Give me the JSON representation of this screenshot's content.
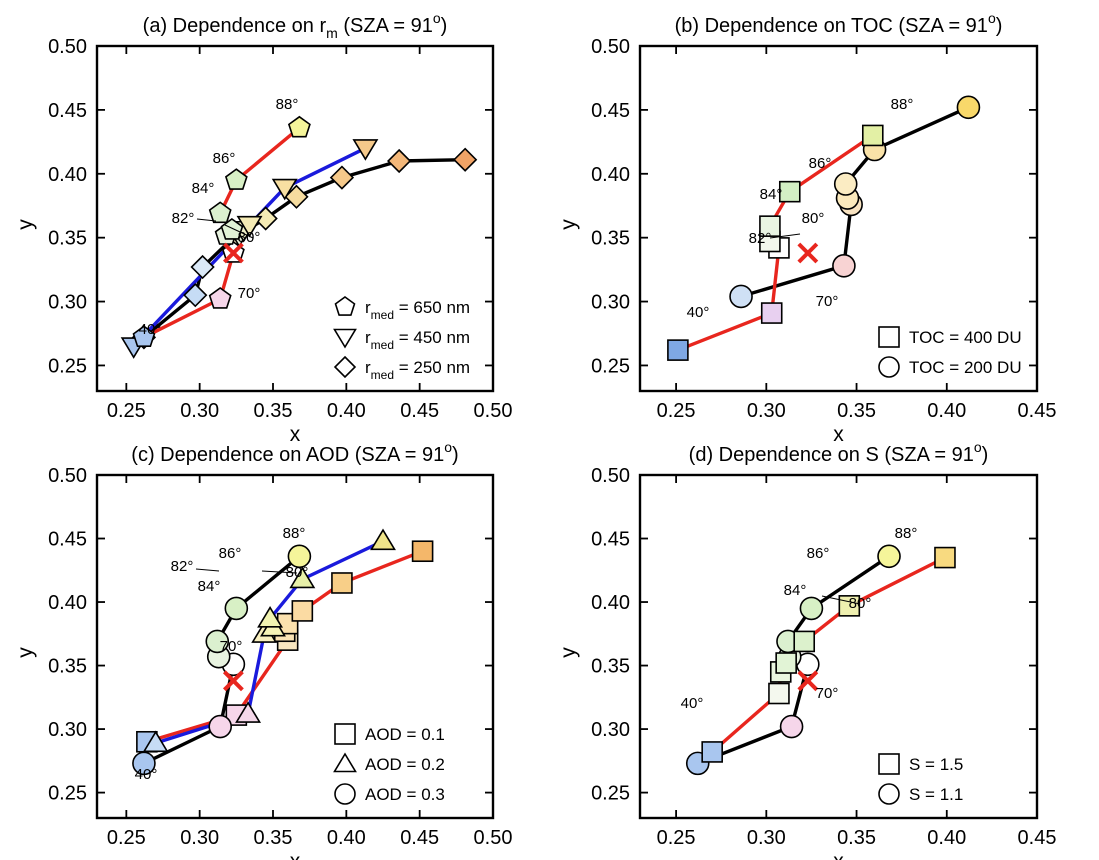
{
  "chart_data": [
    {
      "type": "scatter",
      "title": "(a) Dependence on r",
      "title_sub": "m",
      "title_rest": " (SZA = 91",
      "title_sup": "o",
      "title_end": ")",
      "xlabel": "x",
      "ylabel": "y",
      "xlim": [
        0.23,
        0.5
      ],
      "ylim": [
        0.23,
        0.5
      ],
      "xticks": [
        "0.25",
        "0.30",
        "0.35",
        "0.40",
        "0.45",
        "0.50"
      ],
      "yticks": [
        "0.25",
        "0.30",
        "0.35",
        "0.40",
        "0.45",
        "0.50"
      ],
      "grid": false,
      "marker": {
        "x": 0.323,
        "y": 0.338,
        "color": "#e8261e"
      },
      "series": [
        {
          "line_color": "#000000",
          "marker": "diamond",
          "points": [
            [
              0.262,
              0.272
            ],
            [
              0.297,
              0.305
            ],
            [
              0.302,
              0.327
            ],
            [
              0.322,
              0.349
            ],
            [
              0.345,
              0.365
            ],
            [
              0.366,
              0.382
            ],
            [
              0.397,
              0.397
            ],
            [
              0.436,
              0.41
            ],
            [
              0.481,
              0.411
            ]
          ],
          "fills": [
            "#a9c6ef",
            "#c6dcf5",
            "#dbe9f7",
            "#f2f2c8",
            "#f5ebb5",
            "#f6dc9f",
            "#f5c98a",
            "#f3b779",
            "#f0a366"
          ]
        },
        {
          "line_color": "#1a1adc",
          "marker": "triangle-down",
          "points": [
            [
              0.255,
              0.265
            ],
            [
              0.327,
              0.352
            ],
            [
              0.33,
              0.356
            ],
            [
              0.334,
              0.36
            ],
            [
              0.358,
              0.389
            ],
            [
              0.413,
              0.42
            ]
          ],
          "fills": [
            "#a9c6ef",
            "#e6efd8",
            "#f0f0c8",
            "#f5ebb5",
            "#f7dfa2",
            "#f5c98a"
          ]
        },
        {
          "line_color": "#e8261e",
          "marker": "pentagon",
          "points": [
            [
              0.262,
              0.272
            ],
            [
              0.314,
              0.302
            ],
            [
              0.323,
              0.338
            ],
            [
              0.318,
              0.352
            ],
            [
              0.322,
              0.356
            ],
            [
              0.314,
              0.369
            ],
            [
              0.325,
              0.395
            ],
            [
              0.368,
              0.436
            ]
          ],
          "fills": [
            "#a9c6ef",
            "#f6d6ea",
            "#ffffff",
            "#e8f3e0",
            "#e1f2d6",
            "#dbf0cf",
            "#d8f0c5",
            "#f5f59a"
          ]
        }
      ],
      "annotations": [
        "88°",
        "86°",
        "84°",
        "82°",
        "80°",
        "70°",
        "40°"
      ],
      "legend": [
        {
          "label": "r",
          "sub": "med",
          "rest": " = 650 nm",
          "color": "#e8261e",
          "marker": "pentagon"
        },
        {
          "label": "r",
          "sub": "med",
          "rest": " = 450 nm",
          "color": "#1a1adc",
          "marker": "triangle-down"
        },
        {
          "label": "r",
          "sub": "med",
          "rest": " = 250 nm",
          "color": "#000000",
          "marker": "diamond"
        }
      ],
      "legend_position": "bottom-right"
    },
    {
      "type": "scatter",
      "title": "(b) Dependence on TOC (SZA = 91",
      "title_sup": "o",
      "title_end": ")",
      "xlabel": "x",
      "ylabel": "y",
      "xlim": [
        0.23,
        0.45
      ],
      "ylim": [
        0.23,
        0.5
      ],
      "xticks": [
        "0.25",
        "0.30",
        "0.35",
        "0.40",
        "0.45"
      ],
      "yticks": [
        "0.25",
        "0.30",
        "0.35",
        "0.40",
        "0.45",
        "0.50"
      ],
      "grid": false,
      "marker": {
        "x": 0.323,
        "y": 0.338,
        "color": "#e8261e"
      },
      "series": [
        {
          "line_color": "#000000",
          "marker": "circle",
          "points": [
            [
              0.286,
              0.304
            ],
            [
              0.343,
              0.328
            ],
            [
              0.347,
              0.376
            ],
            [
              0.345,
              0.381
            ],
            [
              0.344,
              0.392
            ],
            [
              0.36,
              0.419
            ],
            [
              0.412,
              0.452
            ]
          ],
          "fills": [
            "#cfe0f5",
            "#f8d3d3",
            "#f8e3c1",
            "#fbe9bc",
            "#fbecc3",
            "#f9e2a8",
            "#f8d86a"
          ]
        },
        {
          "line_color": "#e8261e",
          "marker": "square",
          "points": [
            [
              0.251,
              0.262
            ],
            [
              0.303,
              0.291
            ],
            [
              0.307,
              0.342
            ],
            [
              0.302,
              0.347
            ],
            [
              0.302,
              0.359
            ],
            [
              0.313,
              0.386
            ],
            [
              0.359,
              0.43
            ]
          ],
          "fills": [
            "#7fa8e4",
            "#e8d0f0",
            "#ffffff",
            "#f3f8ec",
            "#e9f5e2",
            "#d3efc4",
            "#e3f0a5"
          ]
        }
      ],
      "annotations": [
        "88°",
        "86°",
        "84°",
        "82°",
        "80°",
        "70°",
        "40°"
      ],
      "legend": [
        {
          "label": "TOC = 400 DU",
          "color": "#e8261e",
          "marker": "square"
        },
        {
          "label": "TOC = 200 DU",
          "color": "#000000",
          "marker": "circle"
        }
      ],
      "legend_position": "bottom-right"
    },
    {
      "type": "scatter",
      "title": "(c) Dependence on AOD (SZA = 91",
      "title_sup": "o",
      "title_end": ")",
      "xlabel": "x",
      "ylabel": "y",
      "xlim": [
        0.23,
        0.5
      ],
      "ylim": [
        0.23,
        0.5
      ],
      "xticks": [
        "0.25",
        "0.30",
        "0.35",
        "0.40",
        "0.45",
        "0.50"
      ],
      "yticks": [
        "0.25",
        "0.30",
        "0.35",
        "0.40",
        "0.45",
        "0.50"
      ],
      "grid": false,
      "marker": {
        "x": 0.323,
        "y": 0.338,
        "color": "#e8261e"
      },
      "series": [
        {
          "line_color": "#e8261e",
          "marker": "square",
          "points": [
            [
              0.264,
              0.29
            ],
            [
              0.325,
              0.311
            ],
            [
              0.36,
              0.37
            ],
            [
              0.358,
              0.377
            ],
            [
              0.36,
              0.383
            ],
            [
              0.37,
              0.393
            ],
            [
              0.397,
              0.415
            ],
            [
              0.452,
              0.44
            ]
          ],
          "fills": [
            "#a9c6ef",
            "#f6d6ea",
            "#f8e6c0",
            "#fae3b5",
            "#fbe1ae",
            "#fbdba3",
            "#f8cf88",
            "#f4b76a"
          ]
        },
        {
          "line_color": "#1a1adc",
          "marker": "triangle",
          "points": [
            [
              0.27,
              0.289
            ],
            [
              0.333,
              0.312
            ],
            [
              0.344,
              0.375
            ],
            [
              0.35,
              0.38
            ],
            [
              0.348,
              0.387
            ],
            [
              0.37,
              0.418
            ],
            [
              0.425,
              0.448
            ]
          ],
          "fills": [
            "#c6dcf5",
            "#f5d8ea",
            "#f8efbf",
            "#f6f3b7",
            "#f1f3b1",
            "#e7f0a8",
            "#f0e58a"
          ]
        },
        {
          "line_color": "#000000",
          "marker": "circle",
          "points": [
            [
              0.262,
              0.273
            ],
            [
              0.314,
              0.302
            ],
            [
              0.323,
              0.351
            ],
            [
              0.313,
              0.357
            ],
            [
              0.312,
              0.369
            ],
            [
              0.325,
              0.395
            ],
            [
              0.368,
              0.436
            ]
          ],
          "fills": [
            "#a9c6ef",
            "#f6d6ea",
            "#ffffff",
            "#e8f3e0",
            "#dbf0cf",
            "#d8f0c5",
            "#f5f59a"
          ]
        }
      ],
      "annotations": [
        "88°",
        "86°",
        "84°",
        "82°",
        "80°",
        "70°",
        "40°"
      ],
      "legend": [
        {
          "label": "AOD = 0.1",
          "color": "#e8261e",
          "marker": "square"
        },
        {
          "label": "AOD = 0.2",
          "color": "#1a1adc",
          "marker": "triangle"
        },
        {
          "label": "AOD = 0.3",
          "color": "#000000",
          "marker": "circle"
        }
      ],
      "legend_position": "bottom-right"
    },
    {
      "type": "scatter",
      "title": "(d) Dependence on S (SZA = 91",
      "title_sup": "o",
      "title_end": ")",
      "xlabel": "x",
      "ylabel": "y",
      "xlim": [
        0.23,
        0.45
      ],
      "ylim": [
        0.23,
        0.5
      ],
      "xticks": [
        "0.25",
        "0.30",
        "0.35",
        "0.40",
        "0.45"
      ],
      "yticks": [
        "0.25",
        "0.30",
        "0.35",
        "0.40",
        "0.45",
        "0.50"
      ],
      "grid": false,
      "marker": {
        "x": 0.323,
        "y": 0.338,
        "color": "#e8261e"
      },
      "series": [
        {
          "line_color": "#000000",
          "marker": "circle",
          "points": [
            [
              0.262,
              0.273
            ],
            [
              0.314,
              0.302
            ],
            [
              0.323,
              0.351
            ],
            [
              0.313,
              0.357
            ],
            [
              0.312,
              0.369
            ],
            [
              0.325,
              0.395
            ],
            [
              0.368,
              0.436
            ]
          ],
          "fills": [
            "#a9c6ef",
            "#f6d6ea",
            "#ffffff",
            "#e8f3e0",
            "#dbf0cf",
            "#d8f0c5",
            "#f5f59a"
          ]
        },
        {
          "line_color": "#e8261e",
          "marker": "square",
          "points": [
            [
              0.27,
              0.282
            ],
            [
              0.307,
              0.328
            ],
            [
              0.308,
              0.345
            ],
            [
              0.311,
              0.352
            ],
            [
              0.321,
              0.369
            ],
            [
              0.346,
              0.397
            ],
            [
              0.399,
              0.435
            ]
          ],
          "fills": [
            "#a9c6ef",
            "#f4f8ee",
            "#eaf6e0",
            "#e2f4d6",
            "#dcf1cc",
            "#eff0b0",
            "#f8da80"
          ]
        }
      ],
      "annotations": [
        "88°",
        "86°",
        "84°",
        "80°",
        "70°",
        "40°"
      ],
      "legend": [
        {
          "label": "S = 1.5",
          "color": "#e8261e",
          "marker": "square"
        },
        {
          "label": "S = 1.1",
          "color": "#000000",
          "marker": "circle"
        }
      ],
      "legend_position": "bottom-right"
    }
  ]
}
